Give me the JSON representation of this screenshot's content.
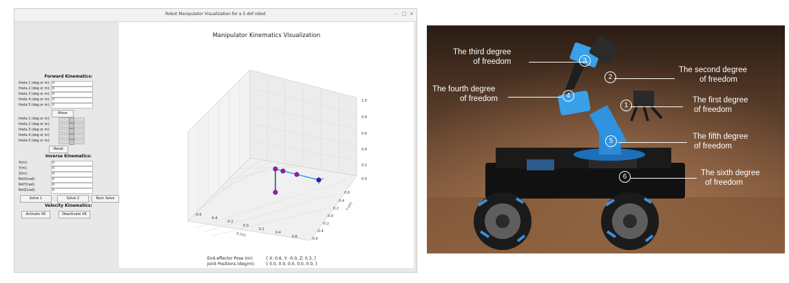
{
  "window": {
    "title": "Robot Manipulator Visualization for a 5-dof robot",
    "min": "–",
    "max": "□",
    "close": "×"
  },
  "forward": {
    "heading": "Forward Kinematics:",
    "fields": [
      {
        "label": "theta 1 (deg or m):",
        "value": "0"
      },
      {
        "label": "theta 2 (deg or m):",
        "value": "0"
      },
      {
        "label": "theta 3 (deg or m):",
        "value": "0"
      },
      {
        "label": "theta 4 (deg or m):",
        "value": "0"
      },
      {
        "label": "theta 5 (deg or m):",
        "value": "0"
      }
    ],
    "move": "Move",
    "sliders": [
      {
        "label": "theta 1 (deg or m):"
      },
      {
        "label": "theta 2 (deg or m):"
      },
      {
        "label": "theta 3 (deg or m):"
      },
      {
        "label": "theta 4 (deg or m):"
      },
      {
        "label": "theta 5 (deg or m):"
      }
    ],
    "reset": "Reset"
  },
  "inverse": {
    "heading": "Inverse Kinematics:",
    "fields": [
      {
        "label": "X(m):",
        "value": "0"
      },
      {
        "label": "Y(m):",
        "value": "0"
      },
      {
        "label": "Z(m):",
        "value": "0"
      },
      {
        "label": "RotX(rad):",
        "value": "0"
      },
      {
        "label": "RotY(rad):",
        "value": "0"
      },
      {
        "label": "RotZ(rad):",
        "value": "0"
      }
    ],
    "solve1": "Solve 1",
    "solve2": "Solve 2",
    "numsolve": "Num Solve"
  },
  "velocity": {
    "heading": "Velocity Kinematics:",
    "activate": "Activate VK",
    "deactivate": "Deactivate VK"
  },
  "plot": {
    "title": "Manipulator Kinematics Visualization",
    "z_ticks": [
      "1.0",
      "0.8",
      "0.6",
      "0.4",
      "0.2",
      "0.0"
    ],
    "y_ticks": [
      "0.6",
      "0.4",
      "0.2",
      "0.0",
      "-0.2",
      "-0.4",
      "-0.6"
    ],
    "x_ticks": [
      "-0.6",
      "-0.4",
      "-0.2",
      "0.0",
      "0.2",
      "0.4",
      "0.6"
    ],
    "x_label": "X (m)",
    "y_label": "Y (m)",
    "ee_label": "End-effector Pose (m):",
    "ee_value": "[ X: 0.6,  Y: -0.0,  Z: 0.3,  ]",
    "jp_label": "Joint Positions (deg/m):",
    "jp_value": "[ 0.0,  0.0,  0.0,  0.0,  0.0,  ]"
  },
  "photo": {
    "labels": [
      {
        "l1": "The third degree",
        "l2": "of freedom"
      },
      {
        "l1": "The second degree",
        "l2": "of freedom"
      },
      {
        "l1": "The fourth degree",
        "l2": "of freedom"
      },
      {
        "l1": "The first degree",
        "l2": "of freedom"
      },
      {
        "l1": "The fifth degree",
        "l2": "of freedom"
      },
      {
        "l1": "The sixth degree",
        "l2": "of freedom"
      }
    ],
    "nums": [
      "3",
      "2",
      "4",
      "1",
      "5",
      "6"
    ]
  }
}
